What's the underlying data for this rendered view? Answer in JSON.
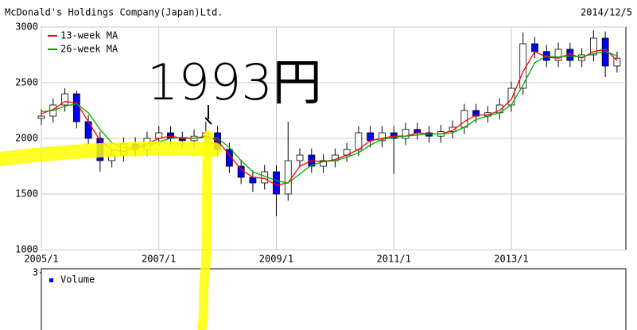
{
  "chart_data": [
    {
      "type": "candlestick",
      "title": "McDonald's Holdings Company(Japan)Ltd.",
      "date": "2014/12/5",
      "annotation": "1993円",
      "x": [
        2005.0,
        2005.2,
        2005.4,
        2005.6,
        2005.8,
        2006.0,
        2006.2,
        2006.4,
        2006.6,
        2006.8,
        2007.0,
        2007.2,
        2007.4,
        2007.6,
        2007.8,
        2008.0,
        2008.2,
        2008.4,
        2008.6,
        2008.8,
        2009.0,
        2009.2,
        2009.4,
        2009.6,
        2009.8,
        2010.0,
        2010.2,
        2010.4,
        2010.6,
        2010.8,
        2011.0,
        2011.2,
        2011.4,
        2011.6,
        2011.8,
        2012.0,
        2012.2,
        2012.4,
        2012.6,
        2012.8,
        2013.0,
        2013.2,
        2013.4,
        2013.6,
        2013.8,
        2014.0,
        2014.2,
        2014.4,
        2014.6,
        2014.8
      ],
      "open": [
        2180,
        2200,
        2300,
        2400,
        2150,
        2000,
        1800,
        1850,
        1950,
        1900,
        2000,
        2050,
        2000,
        1980,
        2020,
        2050,
        1900,
        1750,
        1650,
        1600,
        1700,
        1500,
        1800,
        1850,
        1750,
        1800,
        1850,
        1900,
        2050,
        1980,
        2050,
        2000,
        2080,
        2050,
        2020,
        2060,
        2100,
        2250,
        2200,
        2230,
        2300,
        2450,
        2850,
        2780,
        2700,
        2800,
        2700,
        2750,
        2900,
        2650
      ],
      "high": [
        2260,
        2360,
        2450,
        2430,
        2210,
        2060,
        1910,
        2010,
        2010,
        2060,
        2110,
        2110,
        2060,
        2080,
        2150,
        2110,
        1960,
        1810,
        1710,
        1760,
        1760,
        2150,
        1910,
        1910,
        1860,
        1910,
        1960,
        2110,
        2110,
        2110,
        2110,
        2140,
        2140,
        2110,
        2120,
        2160,
        2310,
        2310,
        2290,
        2360,
        2510,
        2950,
        2910,
        2840,
        2860,
        2860,
        2810,
        2970,
        2960,
        2780
      ],
      "low": [
        2120,
        2140,
        2240,
        2090,
        1940,
        1700,
        1740,
        1790,
        1840,
        1840,
        1940,
        1940,
        1920,
        1920,
        1960,
        1840,
        1690,
        1590,
        1520,
        1540,
        1300,
        1440,
        1740,
        1690,
        1690,
        1740,
        1790,
        1840,
        1920,
        1920,
        1680,
        1940,
        1990,
        1960,
        1960,
        2000,
        2040,
        2140,
        2140,
        2170,
        2240,
        2390,
        2720,
        2640,
        2640,
        2640,
        2640,
        2690,
        2550,
        2590
      ],
      "close": [
        2200,
        2300,
        2400,
        2150,
        2000,
        1800,
        1850,
        1950,
        1900,
        2000,
        2050,
        2000,
        1980,
        2020,
        2050,
        1900,
        1750,
        1650,
        1600,
        1700,
        1500,
        1800,
        1850,
        1750,
        1800,
        1850,
        1900,
        2050,
        1980,
        2050,
        2000,
        2080,
        2050,
        2020,
        2060,
        2100,
        2250,
        2200,
        2230,
        2300,
        2450,
        2850,
        2780,
        2700,
        2800,
        2700,
        2750,
        2900,
        2650,
        2720
      ],
      "up_color": "#ffffff",
      "down_color": "#0000ff",
      "series": [
        {
          "name": "13-week MA",
          "color": "#ff0000",
          "values": [
            2220,
            2260,
            2330,
            2320,
            2150,
            1980,
            1900,
            1880,
            1920,
            1950,
            2000,
            2020,
            2000,
            2000,
            2020,
            1980,
            1850,
            1720,
            1650,
            1640,
            1580,
            1600,
            1750,
            1800,
            1790,
            1810,
            1850,
            1900,
            1980,
            2000,
            2020,
            2020,
            2050,
            2040,
            2040,
            2070,
            2150,
            2210,
            2210,
            2250,
            2350,
            2600,
            2780,
            2730,
            2720,
            2760,
            2720,
            2780,
            2800,
            2700
          ]
        },
        {
          "name": "26-week MA",
          "color": "#00aa00",
          "values": [
            2240,
            2250,
            2290,
            2310,
            2230,
            2080,
            1960,
            1920,
            1910,
            1930,
            1970,
            2000,
            2010,
            2000,
            2010,
            2000,
            1920,
            1800,
            1700,
            1660,
            1620,
            1600,
            1680,
            1760,
            1790,
            1800,
            1830,
            1870,
            1940,
            1990,
            2010,
            2020,
            2030,
            2040,
            2040,
            2050,
            2100,
            2170,
            2200,
            2230,
            2300,
            2480,
            2680,
            2740,
            2730,
            2740,
            2730,
            2760,
            2780,
            2740
          ]
        }
      ],
      "xlim": [
        2005,
        2014.95
      ],
      "xticks": [
        {
          "value": 2005,
          "label": "2005/1"
        },
        {
          "value": 2007,
          "label": "2007/1"
        },
        {
          "value": 2009,
          "label": "2009/1"
        },
        {
          "value": 2011,
          "label": "2011/1"
        },
        {
          "value": 2013,
          "label": "2013/1"
        }
      ],
      "ylim": [
        1000,
        3000
      ],
      "yticks": [
        1000,
        1500,
        2000,
        2500,
        3000
      ],
      "grid": true
    },
    {
      "type": "bar",
      "series": [
        {
          "name": "Volume",
          "color": "#0000ff"
        }
      ],
      "yticks": [
        3
      ]
    }
  ]
}
